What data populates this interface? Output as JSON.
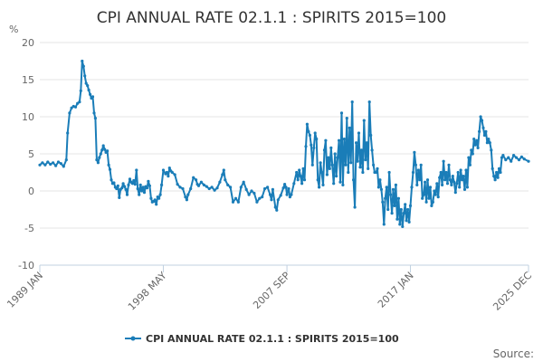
{
  "colors": {
    "series": "#1a7db8",
    "grid": "#e6e6e6",
    "axis": "#c0d0e0"
  },
  "chart_data": {
    "type": "line",
    "title": "CPI ANNUAL RATE 02.1.1 : SPIRITS 2015=100",
    "ylabel": "%",
    "xlabel": "",
    "ylim": [
      -10,
      20
    ],
    "yticks": [
      -10,
      -5,
      0,
      5,
      10,
      15,
      20
    ],
    "xlim": [
      1989.0,
      2025.92
    ],
    "xticks": [
      {
        "label": "1989 JAN",
        "value": 1989.0
      },
      {
        "label": "1998 MAY",
        "value": 1998.33
      },
      {
        "label": "2007 SEP",
        "value": 2007.67
      },
      {
        "label": "2017 JAN",
        "value": 2017.0
      },
      {
        "label": "2025 DEC",
        "value": 2025.92
      }
    ],
    "legend": "bottom-center",
    "grid": true,
    "series": [
      {
        "name": "CPI ANNUAL RATE 02.1.1 : SPIRITS 2015=100",
        "points": [
          [
            1989.0,
            3.5
          ],
          [
            1989.2,
            3.8
          ],
          [
            1989.4,
            3.5
          ],
          [
            1989.6,
            3.9
          ],
          [
            1989.8,
            3.6
          ],
          [
            1990.0,
            3.8
          ],
          [
            1990.2,
            3.4
          ],
          [
            1990.4,
            3.9
          ],
          [
            1990.6,
            3.7
          ],
          [
            1990.8,
            3.3
          ],
          [
            1991.0,
            4.2
          ],
          [
            1991.1,
            7.8
          ],
          [
            1991.25,
            10.5
          ],
          [
            1991.4,
            11.2
          ],
          [
            1991.55,
            11.4
          ],
          [
            1991.7,
            11.3
          ],
          [
            1991.85,
            11.8
          ],
          [
            1992.0,
            12.0
          ],
          [
            1992.1,
            13.5
          ],
          [
            1992.2,
            17.5
          ],
          [
            1992.3,
            16.8
          ],
          [
            1992.4,
            15.5
          ],
          [
            1992.5,
            14.5
          ],
          [
            1992.6,
            14.2
          ],
          [
            1992.7,
            13.6
          ],
          [
            1992.8,
            13.0
          ],
          [
            1992.9,
            12.5
          ],
          [
            1993.0,
            12.7
          ],
          [
            1993.1,
            10.5
          ],
          [
            1993.2,
            9.8
          ],
          [
            1993.3,
            4.2
          ],
          [
            1993.4,
            3.8
          ],
          [
            1993.5,
            4.5
          ],
          [
            1993.6,
            5.0
          ],
          [
            1993.7,
            5.5
          ],
          [
            1993.8,
            6.1
          ],
          [
            1993.9,
            5.6
          ],
          [
            1994.0,
            5.2
          ],
          [
            1994.1,
            5.4
          ],
          [
            1994.2,
            3.5
          ],
          [
            1994.3,
            2.9
          ],
          [
            1994.4,
            1.5
          ],
          [
            1994.5,
            1.0
          ],
          [
            1994.6,
            1.1
          ],
          [
            1994.7,
            0.5
          ],
          [
            1994.8,
            0.3
          ],
          [
            1994.9,
            0.7
          ],
          [
            1995.0,
            -0.9
          ],
          [
            1995.1,
            0.2
          ],
          [
            1995.2,
            0.4
          ],
          [
            1995.3,
            1.0
          ],
          [
            1995.4,
            0.6
          ],
          [
            1995.5,
            0.2
          ],
          [
            1995.6,
            -0.5
          ],
          [
            1995.7,
            0.8
          ],
          [
            1995.8,
            1.6
          ],
          [
            1995.9,
            1.2
          ],
          [
            1996.0,
            1.0
          ],
          [
            1996.1,
            1.4
          ],
          [
            1996.2,
            0.9
          ],
          [
            1996.3,
            2.8
          ],
          [
            1996.4,
            0.3
          ],
          [
            1996.5,
            -0.5
          ],
          [
            1996.6,
            0.8
          ],
          [
            1996.7,
            0.0
          ],
          [
            1996.8,
            0.5
          ],
          [
            1996.9,
            -0.2
          ],
          [
            1997.0,
            0.6
          ],
          [
            1997.1,
            0.4
          ],
          [
            1997.2,
            1.3
          ],
          [
            1997.3,
            0.7
          ],
          [
            1997.4,
            -1.0
          ],
          [
            1997.5,
            -1.5
          ],
          [
            1997.6,
            -1.4
          ],
          [
            1997.7,
            -1.2
          ],
          [
            1997.8,
            -1.8
          ],
          [
            1997.9,
            -0.8
          ],
          [
            1998.0,
            -1.0
          ],
          [
            1998.1,
            -0.5
          ],
          [
            1998.2,
            0.8
          ],
          [
            1998.33,
            2.8
          ],
          [
            1998.5,
            2.3
          ],
          [
            1998.6,
            2.5
          ],
          [
            1998.7,
            2.0
          ],
          [
            1998.8,
            3.1
          ],
          [
            1998.9,
            2.7
          ],
          [
            1999.0,
            2.5
          ],
          [
            1999.2,
            2.2
          ],
          [
            1999.4,
            0.9
          ],
          [
            1999.6,
            0.5
          ],
          [
            1999.8,
            0.3
          ],
          [
            2000.0,
            -0.8
          ],
          [
            2000.1,
            -1.2
          ],
          [
            2000.2,
            -0.5
          ],
          [
            2000.4,
            0.3
          ],
          [
            2000.6,
            1.8
          ],
          [
            2000.8,
            1.5
          ],
          [
            2000.9,
            0.9
          ],
          [
            2001.0,
            0.7
          ],
          [
            2001.2,
            1.2
          ],
          [
            2001.4,
            0.8
          ],
          [
            2001.6,
            0.6
          ],
          [
            2001.8,
            0.3
          ],
          [
            2002.0,
            0.5
          ],
          [
            2002.2,
            0.1
          ],
          [
            2002.4,
            0.4
          ],
          [
            2002.6,
            1.2
          ],
          [
            2002.8,
            2.2
          ],
          [
            2002.9,
            2.8
          ],
          [
            2003.0,
            1.5
          ],
          [
            2003.2,
            0.8
          ],
          [
            2003.4,
            0.5
          ],
          [
            2003.6,
            -1.5
          ],
          [
            2003.8,
            -1.0
          ],
          [
            2004.0,
            -1.5
          ],
          [
            2004.2,
            0.5
          ],
          [
            2004.4,
            1.2
          ],
          [
            2004.6,
            0.2
          ],
          [
            2004.8,
            -0.5
          ],
          [
            2005.0,
            0.0
          ],
          [
            2005.2,
            -0.3
          ],
          [
            2005.4,
            -1.5
          ],
          [
            2005.6,
            -1.0
          ],
          [
            2005.8,
            -0.8
          ],
          [
            2006.0,
            0.3
          ],
          [
            2006.2,
            0.5
          ],
          [
            2006.4,
            -0.5
          ],
          [
            2006.5,
            -1.2
          ],
          [
            2006.6,
            0.2
          ],
          [
            2006.8,
            -2.2
          ],
          [
            2006.9,
            -2.6
          ],
          [
            2007.0,
            -1.2
          ],
          [
            2007.2,
            -0.6
          ],
          [
            2007.4,
            0.4
          ],
          [
            2007.5,
            0.9
          ],
          [
            2007.6,
            0.5
          ],
          [
            2007.67,
            -0.5
          ],
          [
            2007.8,
            0.3
          ],
          [
            2007.9,
            -0.8
          ],
          [
            2008.0,
            -0.5
          ],
          [
            2008.2,
            1.0
          ],
          [
            2008.4,
            2.5
          ],
          [
            2008.5,
            1.5
          ],
          [
            2008.6,
            2.8
          ],
          [
            2008.7,
            2.0
          ],
          [
            2008.8,
            1.0
          ],
          [
            2008.9,
            3.0
          ],
          [
            2009.0,
            1.5
          ],
          [
            2009.1,
            6.0
          ],
          [
            2009.2,
            9.0
          ],
          [
            2009.3,
            8.0
          ],
          [
            2009.4,
            7.5
          ],
          [
            2009.5,
            6.2
          ],
          [
            2009.6,
            3.5
          ],
          [
            2009.7,
            5.8
          ],
          [
            2009.8,
            7.8
          ],
          [
            2009.9,
            7.0
          ],
          [
            2010.0,
            1.5
          ],
          [
            2010.1,
            0.5
          ],
          [
            2010.2,
            3.8
          ],
          [
            2010.3,
            2.5
          ],
          [
            2010.4,
            0.8
          ],
          [
            2010.5,
            5.5
          ],
          [
            2010.6,
            6.8
          ],
          [
            2010.7,
            2.2
          ],
          [
            2010.8,
            4.5
          ],
          [
            2010.9,
            3.0
          ],
          [
            2011.0,
            5.8
          ],
          [
            2011.1,
            3.5
          ],
          [
            2011.2,
            1.0
          ],
          [
            2011.3,
            5.0
          ],
          [
            2011.4,
            2.0
          ],
          [
            2011.5,
            4.5
          ],
          [
            2011.6,
            6.8
          ],
          [
            2011.7,
            1.2
          ],
          [
            2011.8,
            10.5
          ],
          [
            2011.9,
            0.8
          ],
          [
            2012.0,
            7.0
          ],
          [
            2012.1,
            3.5
          ],
          [
            2012.2,
            9.8
          ],
          [
            2012.3,
            2.5
          ],
          [
            2012.4,
            8.5
          ],
          [
            2012.5,
            3.8
          ],
          [
            2012.6,
            12.0
          ],
          [
            2012.7,
            1.5
          ],
          [
            2012.8,
            -2.2
          ],
          [
            2012.9,
            6.5
          ],
          [
            2013.0,
            4.0
          ],
          [
            2013.1,
            7.8
          ],
          [
            2013.2,
            3.2
          ],
          [
            2013.3,
            5.5
          ],
          [
            2013.4,
            2.5
          ],
          [
            2013.5,
            9.5
          ],
          [
            2013.6,
            4.2
          ],
          [
            2013.7,
            6.5
          ],
          [
            2013.8,
            3.0
          ],
          [
            2013.9,
            12.0
          ],
          [
            2014.0,
            7.5
          ],
          [
            2014.1,
            5.5
          ],
          [
            2014.2,
            3.5
          ],
          [
            2014.3,
            2.5
          ],
          [
            2014.4,
            2.5
          ],
          [
            2014.5,
            3.0
          ],
          [
            2014.6,
            0.5
          ],
          [
            2014.7,
            1.5
          ],
          [
            2014.8,
            0.2
          ],
          [
            2014.9,
            -1.5
          ],
          [
            2015.0,
            -4.5
          ],
          [
            2015.1,
            -1.0
          ],
          [
            2015.2,
            0.5
          ],
          [
            2015.3,
            -2.5
          ],
          [
            2015.4,
            2.5
          ],
          [
            2015.5,
            -0.5
          ],
          [
            2015.6,
            -3.0
          ],
          [
            2015.7,
            0.2
          ],
          [
            2015.8,
            -2.0
          ],
          [
            2015.9,
            0.8
          ],
          [
            2016.0,
            -3.8
          ],
          [
            2016.1,
            -1.0
          ],
          [
            2016.2,
            -4.5
          ],
          [
            2016.3,
            -2.5
          ],
          [
            2016.4,
            -4.8
          ],
          [
            2016.5,
            -3.0
          ],
          [
            2016.6,
            -1.8
          ],
          [
            2016.7,
            -4.0
          ],
          [
            2016.8,
            -2.5
          ],
          [
            2016.9,
            -4.2
          ],
          [
            2017.0,
            -2.0
          ],
          [
            2017.1,
            0.5
          ],
          [
            2017.2,
            2.5
          ],
          [
            2017.3,
            5.2
          ],
          [
            2017.4,
            3.5
          ],
          [
            2017.5,
            0.8
          ],
          [
            2017.6,
            2.8
          ],
          [
            2017.7,
            1.5
          ],
          [
            2017.8,
            3.5
          ],
          [
            2017.9,
            -1.0
          ],
          [
            2018.0,
            -0.5
          ],
          [
            2018.1,
            1.2
          ],
          [
            2018.2,
            -1.5
          ],
          [
            2018.3,
            1.5
          ],
          [
            2018.4,
            -1.0
          ],
          [
            2018.5,
            0.5
          ],
          [
            2018.6,
            -2.0
          ],
          [
            2018.7,
            -1.5
          ],
          [
            2018.8,
            0.0
          ],
          [
            2018.9,
            -0.5
          ],
          [
            2019.0,
            1.0
          ],
          [
            2019.1,
            -0.8
          ],
          [
            2019.2,
            1.8
          ],
          [
            2019.3,
            2.5
          ],
          [
            2019.4,
            0.8
          ],
          [
            2019.5,
            4.0
          ],
          [
            2019.6,
            1.5
          ],
          [
            2019.7,
            2.5
          ],
          [
            2019.8,
            1.0
          ],
          [
            2019.9,
            3.5
          ],
          [
            2020.0,
            1.5
          ],
          [
            2020.1,
            0.8
          ],
          [
            2020.2,
            2.0
          ],
          [
            2020.3,
            1.2
          ],
          [
            2020.4,
            -0.2
          ],
          [
            2020.5,
            1.0
          ],
          [
            2020.6,
            2.5
          ],
          [
            2020.7,
            0.5
          ],
          [
            2020.8,
            2.8
          ],
          [
            2020.9,
            1.5
          ],
          [
            2021.0,
            2.0
          ],
          [
            2021.1,
            0.2
          ],
          [
            2021.2,
            2.8
          ],
          [
            2021.3,
            0.5
          ],
          [
            2021.4,
            4.5
          ],
          [
            2021.5,
            3.5
          ],
          [
            2021.6,
            5.5
          ],
          [
            2021.7,
            5.0
          ],
          [
            2021.8,
            7.0
          ],
          [
            2021.9,
            6.2
          ],
          [
            2022.0,
            6.8
          ],
          [
            2022.1,
            5.8
          ],
          [
            2022.2,
            8.0
          ],
          [
            2022.3,
            10.0
          ],
          [
            2022.4,
            9.5
          ],
          [
            2022.5,
            8.5
          ],
          [
            2022.6,
            7.5
          ],
          [
            2022.7,
            8.0
          ],
          [
            2022.8,
            6.5
          ],
          [
            2022.9,
            7.0
          ],
          [
            2023.0,
            6.5
          ],
          [
            2023.1,
            5.5
          ],
          [
            2023.2,
            3.0
          ],
          [
            2023.3,
            2.0
          ],
          [
            2023.4,
            1.5
          ],
          [
            2023.5,
            2.5
          ],
          [
            2023.6,
            1.8
          ],
          [
            2023.7,
            3.0
          ],
          [
            2023.8,
            2.5
          ],
          [
            2023.9,
            4.5
          ],
          [
            2024.0,
            4.8
          ],
          [
            2024.2,
            4.2
          ],
          [
            2024.4,
            4.5
          ],
          [
            2024.6,
            4.0
          ],
          [
            2024.8,
            4.8
          ],
          [
            2025.0,
            4.5
          ],
          [
            2025.2,
            4.2
          ],
          [
            2025.4,
            4.6
          ],
          [
            2025.6,
            4.3
          ],
          [
            2025.92,
            4.0
          ]
        ]
      }
    ]
  },
  "source_label": "Source:"
}
